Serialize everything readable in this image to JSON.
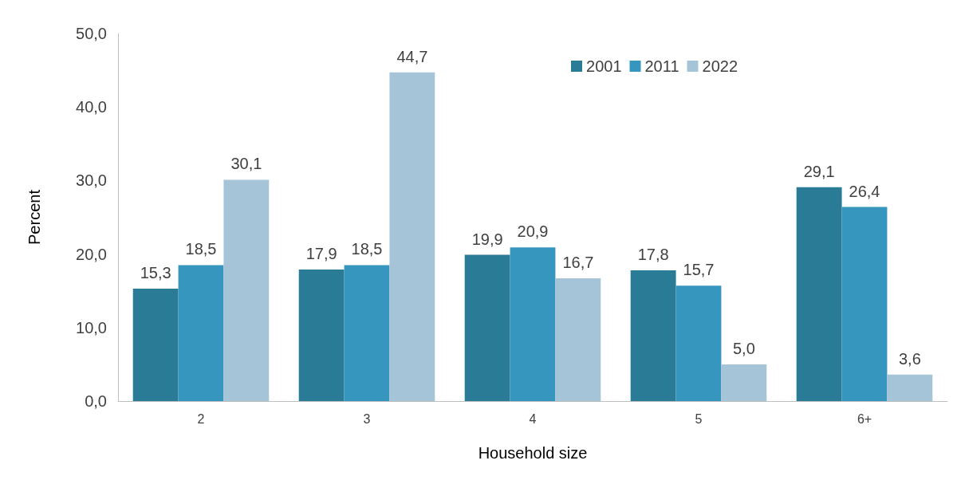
{
  "chart_data": {
    "type": "bar",
    "xlabel": "Household size",
    "ylabel": "Percent",
    "categories": [
      "2",
      "3",
      "4",
      "5",
      "6+"
    ],
    "series": [
      {
        "name": "2001",
        "color": "#2a7b96",
        "values": [
          15.3,
          17.9,
          19.9,
          17.8,
          29.1
        ],
        "value_labels": [
          "15,3",
          "17,9",
          "19,9",
          "17,8",
          "29,1"
        ]
      },
      {
        "name": "2011",
        "color": "#3696bd",
        "values": [
          18.5,
          18.5,
          20.9,
          15.7,
          26.4
        ],
        "value_labels": [
          "18,5",
          "18,5",
          "20,9",
          "15,7",
          "26,4"
        ]
      },
      {
        "name": "2022",
        "color": "#a6c4d8",
        "values": [
          30.1,
          44.7,
          16.7,
          5.0,
          3.6
        ],
        "value_labels": [
          "30,1",
          "44,7",
          "16,7",
          "5,0",
          "3,6"
        ]
      }
    ],
    "ylim": [
      0,
      50
    ],
    "yticks": [
      {
        "value": 0,
        "label": "0,0"
      },
      {
        "value": 10,
        "label": "10,0"
      },
      {
        "value": 20,
        "label": "20,0"
      },
      {
        "value": 30,
        "label": "30,0"
      },
      {
        "value": 40,
        "label": "40,0"
      },
      {
        "value": 50,
        "label": "50,0"
      }
    ],
    "grid": false,
    "legend": "top right"
  }
}
